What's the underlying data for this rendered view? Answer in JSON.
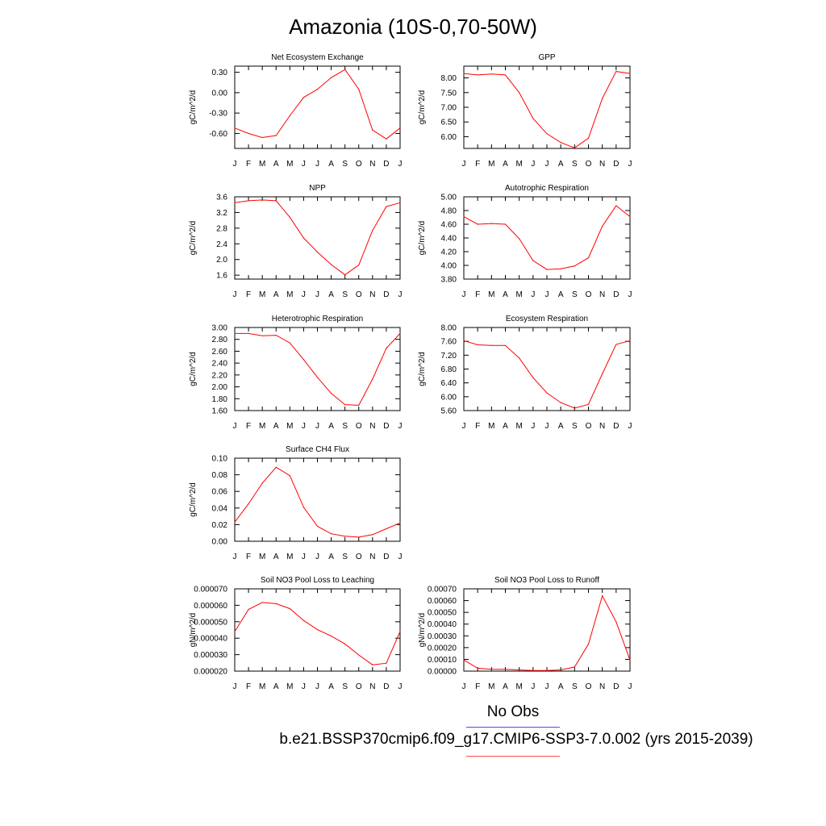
{
  "page": {
    "title": "Amazonia (10S-0,70-50W)",
    "obs_label": "No Obs",
    "case_label": "b.e21.BSSP370cmip6.f09_g17.CMIP6-SSP3-7.0.002 (yrs 2015-2039)"
  },
  "colors": {
    "line": "#ff0000",
    "axis": "#000000",
    "obs_underline": "#4b4bff",
    "case_underline": "#ff4b4b"
  },
  "chart_data": [
    {
      "type": "line",
      "title": "Net Ecosystem Exchange",
      "ylabel": "gC/m^2/d",
      "categories": [
        "J",
        "F",
        "M",
        "A",
        "M",
        "J",
        "J",
        "A",
        "S",
        "O",
        "N",
        "D",
        "J"
      ],
      "ylim": [
        -0.82,
        0.39
      ],
      "yticks": [
        0.3,
        0.0,
        -0.3,
        -0.6
      ],
      "ytick_labels": [
        "0.30",
        "0.00",
        "-0.30",
        "-0.60"
      ],
      "values": [
        -0.52,
        -0.6,
        -0.66,
        -0.63,
        -0.34,
        -0.07,
        0.05,
        0.22,
        0.34,
        0.05,
        -0.55,
        -0.68,
        -0.52
      ]
    },
    {
      "type": "line",
      "title": "GPP",
      "ylabel": "gC/m^2/d",
      "categories": [
        "J",
        "F",
        "M",
        "A",
        "M",
        "J",
        "J",
        "A",
        "S",
        "O",
        "N",
        "D",
        "J"
      ],
      "ylim": [
        5.6,
        8.4
      ],
      "yticks": [
        8.0,
        7.5,
        7.0,
        6.5,
        6.0
      ],
      "ytick_labels": [
        "8.00",
        "7.50",
        "7.00",
        "6.50",
        "6.00"
      ],
      "values": [
        8.15,
        8.1,
        8.13,
        8.1,
        7.5,
        6.62,
        6.1,
        5.8,
        5.62,
        5.95,
        7.3,
        8.22,
        8.15
      ]
    },
    {
      "type": "line",
      "title": "NPP",
      "ylabel": "gC/m^2/d",
      "categories": [
        "J",
        "F",
        "M",
        "A",
        "M",
        "J",
        "J",
        "A",
        "S",
        "O",
        "N",
        "D",
        "J"
      ],
      "ylim": [
        1.5,
        3.6
      ],
      "yticks": [
        3.6,
        3.2,
        2.8,
        2.4,
        2.0,
        1.6
      ],
      "ytick_labels": [
        "3.6",
        "3.2",
        "2.8",
        "2.4",
        "2.0",
        "1.6"
      ],
      "values": [
        3.45,
        3.5,
        3.52,
        3.5,
        3.08,
        2.55,
        2.19,
        1.87,
        1.61,
        1.86,
        2.74,
        3.35,
        3.45
      ]
    },
    {
      "type": "line",
      "title": "Autotrophic Respiration",
      "ylabel": "gC/m^2/d",
      "categories": [
        "J",
        "F",
        "M",
        "A",
        "M",
        "J",
        "J",
        "A",
        "S",
        "O",
        "N",
        "D",
        "J"
      ],
      "ylim": [
        3.8,
        5.0
      ],
      "yticks": [
        5.0,
        4.8,
        4.6,
        4.4,
        4.2,
        4.0,
        3.8
      ],
      "ytick_labels": [
        "5.00",
        "4.80",
        "4.60",
        "4.40",
        "4.20",
        "4.00",
        "3.80"
      ],
      "values": [
        4.71,
        4.6,
        4.61,
        4.6,
        4.39,
        4.07,
        3.94,
        3.95,
        3.99,
        4.11,
        4.57,
        4.87,
        4.71
      ]
    },
    {
      "type": "line",
      "title": "Heterotrophic Respiration",
      "ylabel": "gC/m^2/d",
      "categories": [
        "J",
        "F",
        "M",
        "A",
        "M",
        "J",
        "J",
        "A",
        "S",
        "O",
        "N",
        "D",
        "J"
      ],
      "ylim": [
        1.6,
        3.0
      ],
      "yticks": [
        3.0,
        2.8,
        2.6,
        2.4,
        2.2,
        2.0,
        1.8,
        1.6
      ],
      "ytick_labels": [
        "3.00",
        "2.80",
        "2.60",
        "2.40",
        "2.20",
        "2.00",
        "1.80",
        "1.60"
      ],
      "values": [
        2.9,
        2.9,
        2.86,
        2.87,
        2.74,
        2.46,
        2.16,
        1.89,
        1.7,
        1.69,
        2.13,
        2.65,
        2.9
      ]
    },
    {
      "type": "line",
      "title": "Ecosystem Respiration",
      "ylabel": "gC/m^2/d",
      "categories": [
        "J",
        "F",
        "M",
        "A",
        "M",
        "J",
        "J",
        "A",
        "S",
        "O",
        "N",
        "D",
        "J"
      ],
      "ylim": [
        5.6,
        8.0
      ],
      "yticks": [
        8.0,
        7.6,
        7.2,
        6.8,
        6.4,
        6.0,
        5.6
      ],
      "ytick_labels": [
        "8.00",
        "7.60",
        "7.20",
        "6.80",
        "6.40",
        "6.00",
        "5.60"
      ],
      "values": [
        7.62,
        7.5,
        7.48,
        7.48,
        7.12,
        6.55,
        6.11,
        5.83,
        5.67,
        5.78,
        6.66,
        7.51,
        7.62
      ]
    },
    {
      "type": "line",
      "title": "Surface CH4 Flux",
      "ylabel": "gC/m^2/d",
      "categories": [
        "J",
        "F",
        "M",
        "A",
        "M",
        "J",
        "J",
        "A",
        "S",
        "O",
        "N",
        "D",
        "J"
      ],
      "ylim": [
        0.0,
        0.1
      ],
      "yticks": [
        0.1,
        0.08,
        0.06,
        0.04,
        0.02,
        0.0
      ],
      "ytick_labels": [
        "0.10",
        "0.08",
        "0.06",
        "0.04",
        "0.02",
        "0.00"
      ],
      "values": [
        0.023,
        0.045,
        0.07,
        0.089,
        0.079,
        0.041,
        0.018,
        0.009,
        0.006,
        0.005,
        0.008,
        0.015,
        0.022
      ]
    },
    {
      "type": "line",
      "title": "Soil NO3 Pool Loss to Leaching",
      "ylabel": "gN/m^2/d",
      "categories": [
        "J",
        "F",
        "M",
        "A",
        "M",
        "J",
        "J",
        "A",
        "S",
        "O",
        "N",
        "D",
        "J"
      ],
      "ylim": [
        2e-05,
        7e-05
      ],
      "yticks": [
        7e-05,
        6e-05,
        5e-05,
        4e-05,
        3e-05,
        2e-05
      ],
      "ytick_labels": [
        "0.000070",
        "0.000060",
        "0.000050",
        "0.000040",
        "0.000030",
        "0.000020"
      ],
      "values": [
        4.4e-05,
        5.75e-05,
        6.17e-05,
        6.1e-05,
        5.8e-05,
        5.08e-05,
        4.52e-05,
        4.13e-05,
        3.65e-05,
        2.98e-05,
        2.38e-05,
        2.48e-05,
        4.4e-05
      ]
    },
    {
      "type": "line",
      "title": "Soil NO3 Pool Loss to Runoff",
      "ylabel": "gN/m^2/d",
      "categories": [
        "J",
        "F",
        "M",
        "A",
        "M",
        "J",
        "J",
        "A",
        "S",
        "O",
        "N",
        "D",
        "J"
      ],
      "ylim": [
        0.0,
        0.0007
      ],
      "yticks": [
        0.0007,
        0.0006,
        0.0005,
        0.0004,
        0.0003,
        0.0002,
        0.0001,
        0.0
      ],
      "ytick_labels": [
        "0.00070",
        "0.00060",
        "0.00050",
        "0.00040",
        "0.00030",
        "0.00020",
        "0.00010",
        "0.00000"
      ],
      "values": [
        9.5e-05,
        2.5e-05,
        1.5e-05,
        1.5e-05,
        1e-05,
        5e-06,
        5e-06,
        1e-05,
        3.5e-05,
        0.00023,
        0.00064,
        0.00042,
        9.5e-05
      ]
    }
  ]
}
